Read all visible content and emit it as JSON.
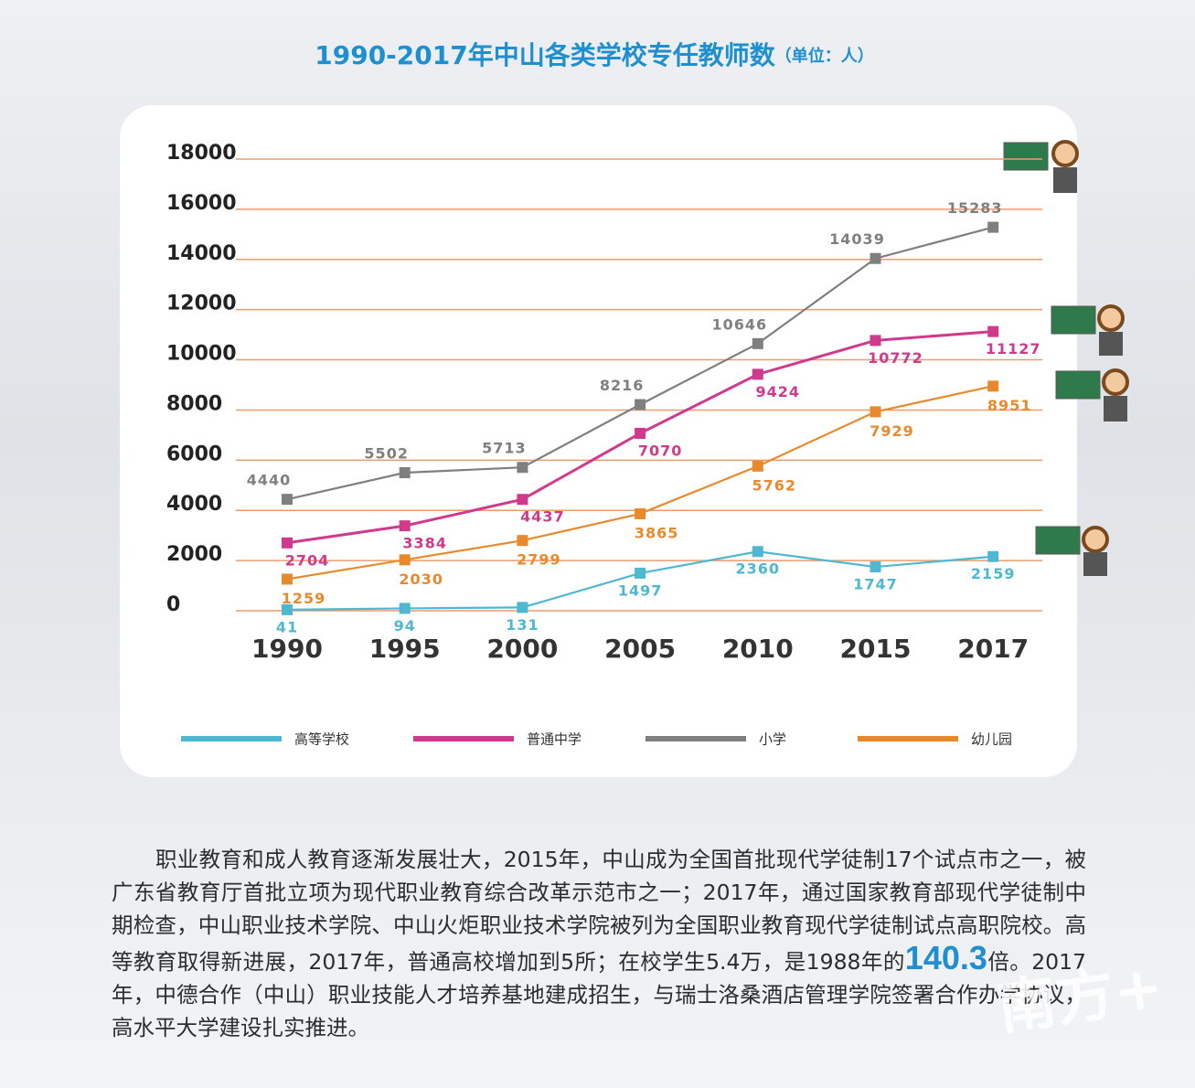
{
  "chart_data": {
    "type": "line",
    "title": "1990-2017年中山各类学校专任教师数",
    "subtitle": "（单位：人）",
    "categories": [
      "1990",
      "1995",
      "2000",
      "2005",
      "2010",
      "2015",
      "2017"
    ],
    "series": [
      {
        "name": "高等学校",
        "color": "#4fb8d0",
        "values": [
          41,
          94,
          131,
          1497,
          2360,
          1747,
          2159
        ]
      },
      {
        "name": "普通中学",
        "color": "#d03a8c",
        "values": [
          2704,
          3384,
          4437,
          7070,
          9424,
          10772,
          11127
        ]
      },
      {
        "name": "小学",
        "color": "#7f7f7f",
        "values": [
          4440,
          5502,
          5713,
          8216,
          10646,
          14039,
          15283
        ]
      },
      {
        "name": "幼儿园",
        "color": "#e88a2c",
        "values": [
          1259,
          2030,
          2799,
          3865,
          5762,
          7929,
          8951
        ]
      }
    ],
    "ylim": [
      0,
      18000
    ],
    "yticks": [
      0,
      2000,
      4000,
      6000,
      8000,
      10000,
      12000,
      14000,
      16000,
      18000
    ],
    "grid": true,
    "legend": "bottom"
  },
  "article": {
    "text": [
      "职业教育和成人教育逐渐发展壮大，2015年，中山成为全国首批现代学徒制17个试点市之一，被广东省教育厅首批立项为现代职业教育综合改革示范市之一；2017年，通过国家教育部现代学徒制中期检查，中山职业技术学院、中山火炬职业技术学院被列为全国职业教育现代学徒制试点高职院校。高等教育取得新进展，2017年，普通高校增加到5所；在校学生5.4万，是1988年的",
      "140.3",
      "倍。2017年，中德合作（中山）职业技能人才培养基地建成招生，与瑞士洛桑酒店管理学院签署合作办学协议，高水平大学建设扎实推进。"
    ]
  },
  "watermark": "南方+"
}
